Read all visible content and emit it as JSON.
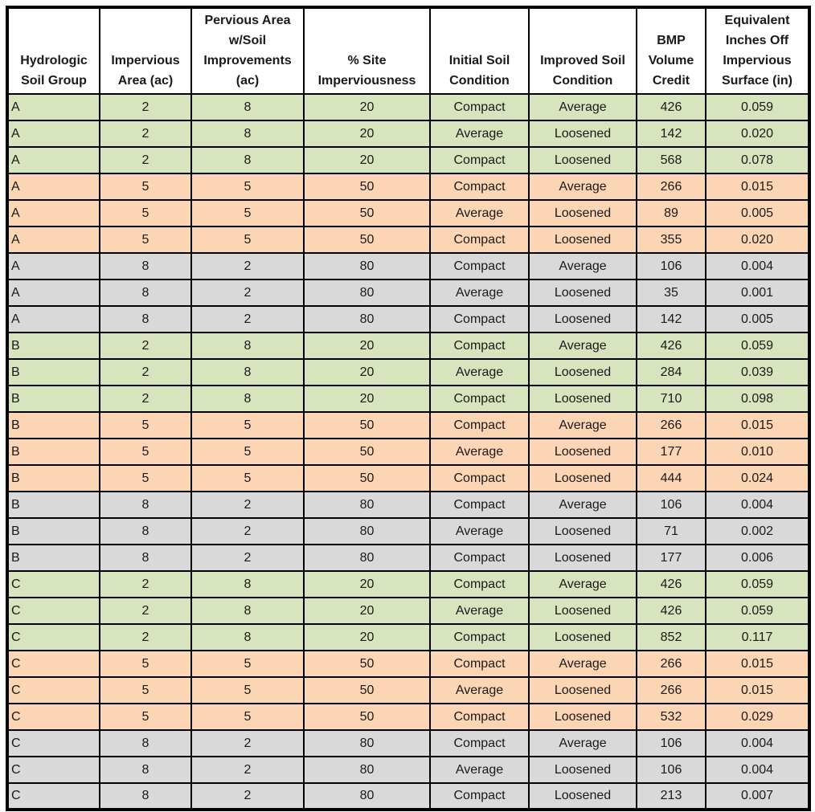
{
  "colors": {
    "green": "#d7e4bd",
    "orange": "#fcd5b4",
    "gray": "#d9d9d9",
    "border": "#000000",
    "text": "#1a1a1a"
  },
  "table": {
    "columns": [
      {
        "key": "soil_group",
        "label": "Hydrologic\nSoil Group"
      },
      {
        "key": "impervious_area",
        "label": "Impervious\nArea (ac)"
      },
      {
        "key": "pervious_area",
        "label": "Pervious Area\nw/Soil\nImprovements\n(ac)"
      },
      {
        "key": "site_imperviousness",
        "label": "% Site\nImperviousness"
      },
      {
        "key": "initial_condition",
        "label": "Initial Soil\nCondition"
      },
      {
        "key": "improved_condition",
        "label": "Improved Soil\nCondition"
      },
      {
        "key": "bmp_volume_credit",
        "label": "BMP\nVolume\nCredit"
      },
      {
        "key": "equiv_inches",
        "label": "Equivalent\nInches Off\nImpervious\nSurface (in)"
      }
    ],
    "rows": [
      {
        "tone": "green",
        "cells": [
          "A",
          "2",
          "8",
          "20",
          "Compact",
          "Average",
          "426",
          "0.059"
        ]
      },
      {
        "tone": "green",
        "cells": [
          "A",
          "2",
          "8",
          "20",
          "Average",
          "Loosened",
          "142",
          "0.020"
        ]
      },
      {
        "tone": "green",
        "cells": [
          "A",
          "2",
          "8",
          "20",
          "Compact",
          "Loosened",
          "568",
          "0.078"
        ]
      },
      {
        "tone": "orange",
        "cells": [
          "A",
          "5",
          "5",
          "50",
          "Compact",
          "Average",
          "266",
          "0.015"
        ]
      },
      {
        "tone": "orange",
        "cells": [
          "A",
          "5",
          "5",
          "50",
          "Average",
          "Loosened",
          "89",
          "0.005"
        ]
      },
      {
        "tone": "orange",
        "cells": [
          "A",
          "5",
          "5",
          "50",
          "Compact",
          "Loosened",
          "355",
          "0.020"
        ]
      },
      {
        "tone": "gray",
        "cells": [
          "A",
          "8",
          "2",
          "80",
          "Compact",
          "Average",
          "106",
          "0.004"
        ]
      },
      {
        "tone": "gray",
        "cells": [
          "A",
          "8",
          "2",
          "80",
          "Average",
          "Loosened",
          "35",
          "0.001"
        ]
      },
      {
        "tone": "gray",
        "cells": [
          "A",
          "8",
          "2",
          "80",
          "Compact",
          "Loosened",
          "142",
          "0.005"
        ]
      },
      {
        "tone": "green",
        "cells": [
          "B",
          "2",
          "8",
          "20",
          "Compact",
          "Average",
          "426",
          "0.059"
        ]
      },
      {
        "tone": "green",
        "cells": [
          "B",
          "2",
          "8",
          "20",
          "Average",
          "Loosened",
          "284",
          "0.039"
        ]
      },
      {
        "tone": "green",
        "cells": [
          "B",
          "2",
          "8",
          "20",
          "Compact",
          "Loosened",
          "710",
          "0.098"
        ]
      },
      {
        "tone": "orange",
        "cells": [
          "B",
          "5",
          "5",
          "50",
          "Compact",
          "Average",
          "266",
          "0.015"
        ]
      },
      {
        "tone": "orange",
        "cells": [
          "B",
          "5",
          "5",
          "50",
          "Average",
          "Loosened",
          "177",
          "0.010"
        ]
      },
      {
        "tone": "orange",
        "cells": [
          "B",
          "5",
          "5",
          "50",
          "Compact",
          "Loosened",
          "444",
          "0.024"
        ]
      },
      {
        "tone": "gray",
        "cells": [
          "B",
          "8",
          "2",
          "80",
          "Compact",
          "Average",
          "106",
          "0.004"
        ]
      },
      {
        "tone": "gray",
        "cells": [
          "B",
          "8",
          "2",
          "80",
          "Average",
          "Loosened",
          "71",
          "0.002"
        ]
      },
      {
        "tone": "gray",
        "cells": [
          "B",
          "8",
          "2",
          "80",
          "Compact",
          "Loosened",
          "177",
          "0.006"
        ]
      },
      {
        "tone": "green",
        "cells": [
          "C",
          "2",
          "8",
          "20",
          "Compact",
          "Average",
          "426",
          "0.059"
        ]
      },
      {
        "tone": "green",
        "cells": [
          "C",
          "2",
          "8",
          "20",
          "Average",
          "Loosened",
          "426",
          "0.059"
        ]
      },
      {
        "tone": "green",
        "cells": [
          "C",
          "2",
          "8",
          "20",
          "Compact",
          "Loosened",
          "852",
          "0.117"
        ]
      },
      {
        "tone": "orange",
        "cells": [
          "C",
          "5",
          "5",
          "50",
          "Compact",
          "Average",
          "266",
          "0.015"
        ]
      },
      {
        "tone": "orange",
        "cells": [
          "C",
          "5",
          "5",
          "50",
          "Average",
          "Loosened",
          "266",
          "0.015"
        ]
      },
      {
        "tone": "orange",
        "cells": [
          "C",
          "5",
          "5",
          "50",
          "Compact",
          "Loosened",
          "532",
          "0.029"
        ]
      },
      {
        "tone": "gray",
        "cells": [
          "C",
          "8",
          "2",
          "80",
          "Compact",
          "Average",
          "106",
          "0.004"
        ]
      },
      {
        "tone": "gray",
        "cells": [
          "C",
          "8",
          "2",
          "80",
          "Average",
          "Loosened",
          "106",
          "0.004"
        ]
      },
      {
        "tone": "gray",
        "cells": [
          "C",
          "8",
          "2",
          "80",
          "Compact",
          "Loosened",
          "213",
          "0.007"
        ]
      }
    ]
  }
}
